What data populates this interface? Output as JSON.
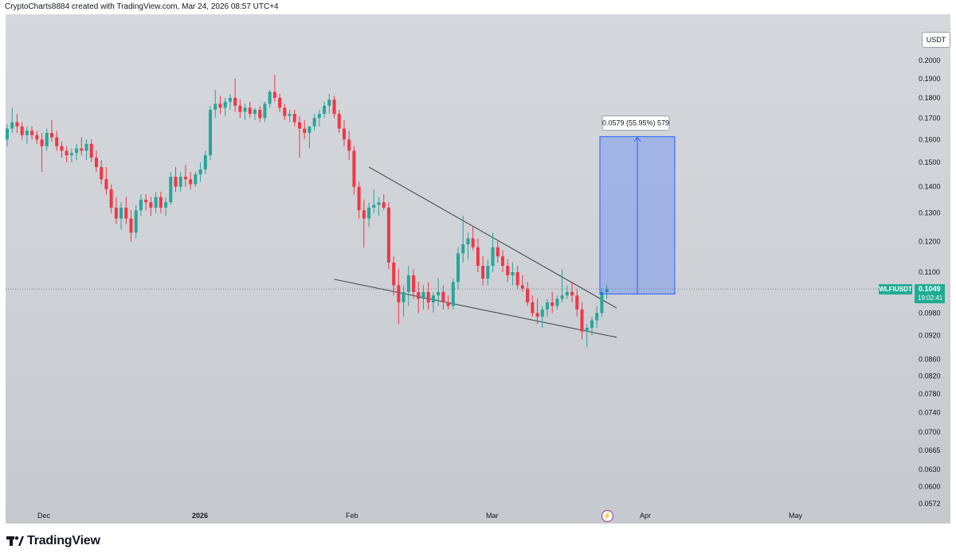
{
  "header": {
    "text": "CryptoCharts8884 created with TradingView.com, Mar 24, 2026 08:57 UTC+4"
  },
  "currency": "USDT",
  "brand": {
    "name": "TradingView"
  },
  "colors": {
    "up": "#26a69a",
    "down": "#f23645",
    "measure": "#2962ff",
    "symbol": "#22ab94"
  },
  "chart_data": {
    "type": "candlestick",
    "symbol": "WLFIUSDT",
    "last_price": "0.1049",
    "countdown": "19:02:41",
    "y_scale": "log",
    "y_ticks": [
      "0.2000",
      "0.1900",
      "0.1800",
      "0.1700",
      "0.1600",
      "0.1500",
      "0.1400",
      "0.1300",
      "0.1200",
      "0.1100",
      "0.1049",
      "0.0980",
      "0.0920",
      "0.0860",
      "0.0820",
      "0.0780",
      "0.0740",
      "0.0700",
      "0.0665",
      "0.0630",
      "0.0600",
      "0.0572"
    ],
    "y_tick_values": [
      0.2,
      0.19,
      0.18,
      0.17,
      0.16,
      0.15,
      0.14,
      0.13,
      0.12,
      0.11,
      0.1049,
      0.098,
      0.092,
      0.086,
      0.082,
      0.078,
      0.074,
      0.07,
      0.0665,
      0.063,
      0.06,
      0.0572
    ],
    "x_labels": [
      "Dec",
      "2026",
      "Feb",
      "Mar",
      "Apr",
      "May"
    ],
    "candles": [
      {
        "o": 0.16,
        "h": 0.167,
        "l": 0.157,
        "c": 0.165
      },
      {
        "o": 0.165,
        "h": 0.175,
        "l": 0.163,
        "c": 0.168
      },
      {
        "o": 0.168,
        "h": 0.172,
        "l": 0.163,
        "c": 0.166
      },
      {
        "o": 0.166,
        "h": 0.168,
        "l": 0.16,
        "c": 0.162
      },
      {
        "o": 0.162,
        "h": 0.166,
        "l": 0.158,
        "c": 0.164
      },
      {
        "o": 0.164,
        "h": 0.166,
        "l": 0.16,
        "c": 0.162
      },
      {
        "o": 0.162,
        "h": 0.164,
        "l": 0.158,
        "c": 0.16
      },
      {
        "o": 0.16,
        "h": 0.163,
        "l": 0.146,
        "c": 0.157
      },
      {
        "o": 0.157,
        "h": 0.165,
        "l": 0.155,
        "c": 0.163
      },
      {
        "o": 0.163,
        "h": 0.169,
        "l": 0.159,
        "c": 0.161
      },
      {
        "o": 0.161,
        "h": 0.164,
        "l": 0.155,
        "c": 0.157
      },
      {
        "o": 0.157,
        "h": 0.159,
        "l": 0.152,
        "c": 0.155
      },
      {
        "o": 0.155,
        "h": 0.157,
        "l": 0.15,
        "c": 0.153
      },
      {
        "o": 0.153,
        "h": 0.156,
        "l": 0.15,
        "c": 0.154
      },
      {
        "o": 0.154,
        "h": 0.158,
        "l": 0.151,
        "c": 0.156
      },
      {
        "o": 0.156,
        "h": 0.161,
        "l": 0.153,
        "c": 0.155
      },
      {
        "o": 0.155,
        "h": 0.16,
        "l": 0.151,
        "c": 0.158
      },
      {
        "o": 0.158,
        "h": 0.16,
        "l": 0.15,
        "c": 0.152
      },
      {
        "o": 0.152,
        "h": 0.155,
        "l": 0.146,
        "c": 0.148
      },
      {
        "o": 0.148,
        "h": 0.151,
        "l": 0.141,
        "c": 0.143
      },
      {
        "o": 0.143,
        "h": 0.148,
        "l": 0.137,
        "c": 0.139
      },
      {
        "o": 0.139,
        "h": 0.141,
        "l": 0.13,
        "c": 0.132
      },
      {
        "o": 0.132,
        "h": 0.136,
        "l": 0.126,
        "c": 0.128
      },
      {
        "o": 0.128,
        "h": 0.134,
        "l": 0.124,
        "c": 0.132
      },
      {
        "o": 0.132,
        "h": 0.136,
        "l": 0.126,
        "c": 0.128
      },
      {
        "o": 0.128,
        "h": 0.131,
        "l": 0.12,
        "c": 0.123
      },
      {
        "o": 0.123,
        "h": 0.133,
        "l": 0.121,
        "c": 0.131
      },
      {
        "o": 0.131,
        "h": 0.137,
        "l": 0.129,
        "c": 0.135
      },
      {
        "o": 0.135,
        "h": 0.137,
        "l": 0.131,
        "c": 0.134
      },
      {
        "o": 0.134,
        "h": 0.136,
        "l": 0.129,
        "c": 0.132
      },
      {
        "o": 0.132,
        "h": 0.138,
        "l": 0.13,
        "c": 0.136
      },
      {
        "o": 0.136,
        "h": 0.138,
        "l": 0.13,
        "c": 0.132
      },
      {
        "o": 0.132,
        "h": 0.136,
        "l": 0.129,
        "c": 0.134
      },
      {
        "o": 0.134,
        "h": 0.146,
        "l": 0.133,
        "c": 0.144
      },
      {
        "o": 0.144,
        "h": 0.148,
        "l": 0.138,
        "c": 0.14
      },
      {
        "o": 0.14,
        "h": 0.146,
        "l": 0.138,
        "c": 0.144
      },
      {
        "o": 0.144,
        "h": 0.149,
        "l": 0.14,
        "c": 0.143
      },
      {
        "o": 0.143,
        "h": 0.146,
        "l": 0.139,
        "c": 0.141
      },
      {
        "o": 0.141,
        "h": 0.146,
        "l": 0.14,
        "c": 0.145
      },
      {
        "o": 0.145,
        "h": 0.15,
        "l": 0.142,
        "c": 0.147
      },
      {
        "o": 0.147,
        "h": 0.155,
        "l": 0.145,
        "c": 0.153
      },
      {
        "o": 0.153,
        "h": 0.176,
        "l": 0.151,
        "c": 0.174
      },
      {
        "o": 0.174,
        "h": 0.184,
        "l": 0.17,
        "c": 0.177
      },
      {
        "o": 0.177,
        "h": 0.181,
        "l": 0.172,
        "c": 0.175
      },
      {
        "o": 0.175,
        "h": 0.18,
        "l": 0.171,
        "c": 0.178
      },
      {
        "o": 0.178,
        "h": 0.182,
        "l": 0.174,
        "c": 0.18
      },
      {
        "o": 0.18,
        "h": 0.19,
        "l": 0.173,
        "c": 0.176
      },
      {
        "o": 0.176,
        "h": 0.179,
        "l": 0.17,
        "c": 0.173
      },
      {
        "o": 0.173,
        "h": 0.177,
        "l": 0.169,
        "c": 0.175
      },
      {
        "o": 0.175,
        "h": 0.178,
        "l": 0.17,
        "c": 0.172
      },
      {
        "o": 0.172,
        "h": 0.175,
        "l": 0.169,
        "c": 0.174
      },
      {
        "o": 0.174,
        "h": 0.176,
        "l": 0.168,
        "c": 0.17
      },
      {
        "o": 0.17,
        "h": 0.178,
        "l": 0.168,
        "c": 0.177
      },
      {
        "o": 0.177,
        "h": 0.184,
        "l": 0.175,
        "c": 0.183
      },
      {
        "o": 0.183,
        "h": 0.192,
        "l": 0.178,
        "c": 0.18
      },
      {
        "o": 0.18,
        "h": 0.182,
        "l": 0.173,
        "c": 0.175
      },
      {
        "o": 0.175,
        "h": 0.177,
        "l": 0.169,
        "c": 0.171
      },
      {
        "o": 0.171,
        "h": 0.174,
        "l": 0.168,
        "c": 0.172
      },
      {
        "o": 0.172,
        "h": 0.174,
        "l": 0.166,
        "c": 0.168
      },
      {
        "o": 0.168,
        "h": 0.171,
        "l": 0.152,
        "c": 0.165
      },
      {
        "o": 0.165,
        "h": 0.169,
        "l": 0.16,
        "c": 0.163
      },
      {
        "o": 0.163,
        "h": 0.166,
        "l": 0.156,
        "c": 0.166
      },
      {
        "o": 0.166,
        "h": 0.172,
        "l": 0.164,
        "c": 0.17
      },
      {
        "o": 0.17,
        "h": 0.174,
        "l": 0.166,
        "c": 0.172
      },
      {
        "o": 0.172,
        "h": 0.178,
        "l": 0.17,
        "c": 0.176
      },
      {
        "o": 0.176,
        "h": 0.182,
        "l": 0.172,
        "c": 0.179
      },
      {
        "o": 0.179,
        "h": 0.181,
        "l": 0.17,
        "c": 0.172
      },
      {
        "o": 0.172,
        "h": 0.174,
        "l": 0.163,
        "c": 0.165
      },
      {
        "o": 0.165,
        "h": 0.169,
        "l": 0.157,
        "c": 0.16
      },
      {
        "o": 0.16,
        "h": 0.164,
        "l": 0.151,
        "c": 0.155
      },
      {
        "o": 0.155,
        "h": 0.157,
        "l": 0.137,
        "c": 0.14
      },
      {
        "o": 0.14,
        "h": 0.142,
        "l": 0.128,
        "c": 0.131
      },
      {
        "o": 0.131,
        "h": 0.135,
        "l": 0.118,
        "c": 0.128
      },
      {
        "o": 0.128,
        "h": 0.134,
        "l": 0.125,
        "c": 0.132
      },
      {
        "o": 0.132,
        "h": 0.139,
        "l": 0.13,
        "c": 0.133
      },
      {
        "o": 0.133,
        "h": 0.136,
        "l": 0.129,
        "c": 0.134
      },
      {
        "o": 0.134,
        "h": 0.137,
        "l": 0.131,
        "c": 0.132
      },
      {
        "o": 0.132,
        "h": 0.134,
        "l": 0.111,
        "c": 0.113
      },
      {
        "o": 0.113,
        "h": 0.115,
        "l": 0.103,
        "c": 0.106
      },
      {
        "o": 0.106,
        "h": 0.111,
        "l": 0.095,
        "c": 0.101
      },
      {
        "o": 0.101,
        "h": 0.106,
        "l": 0.097,
        "c": 0.104
      },
      {
        "o": 0.104,
        "h": 0.112,
        "l": 0.1,
        "c": 0.109
      },
      {
        "o": 0.109,
        "h": 0.111,
        "l": 0.102,
        "c": 0.104
      },
      {
        "o": 0.104,
        "h": 0.107,
        "l": 0.098,
        "c": 0.102
      },
      {
        "o": 0.102,
        "h": 0.106,
        "l": 0.099,
        "c": 0.104
      },
      {
        "o": 0.104,
        "h": 0.107,
        "l": 0.099,
        "c": 0.101
      },
      {
        "o": 0.101,
        "h": 0.104,
        "l": 0.098,
        "c": 0.103
      },
      {
        "o": 0.103,
        "h": 0.108,
        "l": 0.1,
        "c": 0.104
      },
      {
        "o": 0.104,
        "h": 0.106,
        "l": 0.099,
        "c": 0.101
      },
      {
        "o": 0.101,
        "h": 0.103,
        "l": 0.099,
        "c": 0.1
      },
      {
        "o": 0.1,
        "h": 0.108,
        "l": 0.099,
        "c": 0.107
      },
      {
        "o": 0.107,
        "h": 0.118,
        "l": 0.105,
        "c": 0.116
      },
      {
        "o": 0.116,
        "h": 0.129,
        "l": 0.113,
        "c": 0.119
      },
      {
        "o": 0.119,
        "h": 0.123,
        "l": 0.114,
        "c": 0.121
      },
      {
        "o": 0.121,
        "h": 0.125,
        "l": 0.117,
        "c": 0.118
      },
      {
        "o": 0.118,
        "h": 0.121,
        "l": 0.11,
        "c": 0.112
      },
      {
        "o": 0.112,
        "h": 0.115,
        "l": 0.106,
        "c": 0.108
      },
      {
        "o": 0.108,
        "h": 0.114,
        "l": 0.106,
        "c": 0.112
      },
      {
        "o": 0.112,
        "h": 0.123,
        "l": 0.11,
        "c": 0.118
      },
      {
        "o": 0.118,
        "h": 0.12,
        "l": 0.113,
        "c": 0.115
      },
      {
        "o": 0.115,
        "h": 0.117,
        "l": 0.11,
        "c": 0.112
      },
      {
        "o": 0.112,
        "h": 0.114,
        "l": 0.107,
        "c": 0.109
      },
      {
        "o": 0.109,
        "h": 0.113,
        "l": 0.106,
        "c": 0.11
      },
      {
        "o": 0.11,
        "h": 0.112,
        "l": 0.105,
        "c": 0.106
      },
      {
        "o": 0.106,
        "h": 0.109,
        "l": 0.104,
        "c": 0.105
      },
      {
        "o": 0.105,
        "h": 0.107,
        "l": 0.1,
        "c": 0.101
      },
      {
        "o": 0.101,
        "h": 0.103,
        "l": 0.097,
        "c": 0.098
      },
      {
        "o": 0.098,
        "h": 0.102,
        "l": 0.095,
        "c": 0.097
      },
      {
        "o": 0.097,
        "h": 0.1,
        "l": 0.094,
        "c": 0.099
      },
      {
        "o": 0.099,
        "h": 0.102,
        "l": 0.097,
        "c": 0.101
      },
      {
        "o": 0.101,
        "h": 0.104,
        "l": 0.098,
        "c": 0.1
      },
      {
        "o": 0.1,
        "h": 0.103,
        "l": 0.099,
        "c": 0.102
      },
      {
        "o": 0.102,
        "h": 0.111,
        "l": 0.101,
        "c": 0.103
      },
      {
        "o": 0.103,
        "h": 0.106,
        "l": 0.102,
        "c": 0.104
      },
      {
        "o": 0.104,
        "h": 0.107,
        "l": 0.101,
        "c": 0.103
      },
      {
        "o": 0.103,
        "h": 0.105,
        "l": 0.097,
        "c": 0.099
      },
      {
        "o": 0.099,
        "h": 0.101,
        "l": 0.091,
        "c": 0.093
      },
      {
        "o": 0.093,
        "h": 0.095,
        "l": 0.089,
        "c": 0.094
      },
      {
        "o": 0.094,
        "h": 0.097,
        "l": 0.092,
        "c": 0.096
      },
      {
        "o": 0.096,
        "h": 0.1,
        "l": 0.094,
        "c": 0.098
      },
      {
        "o": 0.098,
        "h": 0.105,
        "l": 0.097,
        "c": 0.104
      },
      {
        "o": 0.104,
        "h": 0.106,
        "l": 0.102,
        "c": 0.1049
      }
    ],
    "measure": {
      "label": "0.0579 (55.95%) 579",
      "from": 0.1034,
      "to": 0.1613
    },
    "trendlines": [
      {
        "from": {
          "i": 73,
          "p": 0.148
        },
        "to": {
          "i": 123,
          "p": 0.0994
        }
      },
      {
        "from": {
          "i": 66,
          "p": 0.1078
        },
        "to": {
          "i": 123,
          "p": 0.0915
        }
      }
    ]
  }
}
